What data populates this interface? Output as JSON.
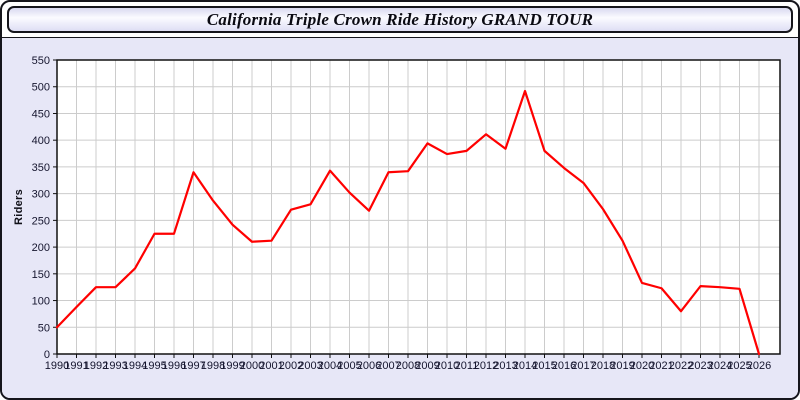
{
  "window": {
    "title": "California Triple Crown Ride History GRAND TOUR"
  },
  "chart_data": {
    "type": "line",
    "title": "California Triple Crown Ride History GRAND TOUR",
    "xlabel": "",
    "ylabel": "Riders",
    "x": [
      1990,
      1991,
      1992,
      1993,
      1994,
      1995,
      1996,
      1997,
      1998,
      1999,
      2000,
      2001,
      2002,
      2003,
      2004,
      2005,
      2006,
      2007,
      2008,
      2009,
      2010,
      2011,
      2012,
      2013,
      2014,
      2015,
      2016,
      2017,
      2018,
      2019,
      2020,
      2021,
      2022,
      2023,
      2024,
      2025,
      2026
    ],
    "values": [
      50,
      88,
      125,
      125,
      160,
      225,
      225,
      340,
      287,
      242,
      210,
      212,
      270,
      280,
      343,
      302,
      268,
      340,
      342,
      394,
      374,
      380,
      411,
      384,
      492,
      380,
      348,
      320,
      271,
      212,
      133,
      123,
      80,
      127,
      125,
      122,
      0
    ],
    "ylim": [
      0,
      550
    ],
    "ytick_step": 50,
    "grid": true,
    "legend": "none",
    "grid_color": "#cccccc",
    "line_color": "#ff0000",
    "axis_color": "#111111",
    "plot_bg": "#ffffff",
    "panel_bg": "#e7e7f7"
  }
}
